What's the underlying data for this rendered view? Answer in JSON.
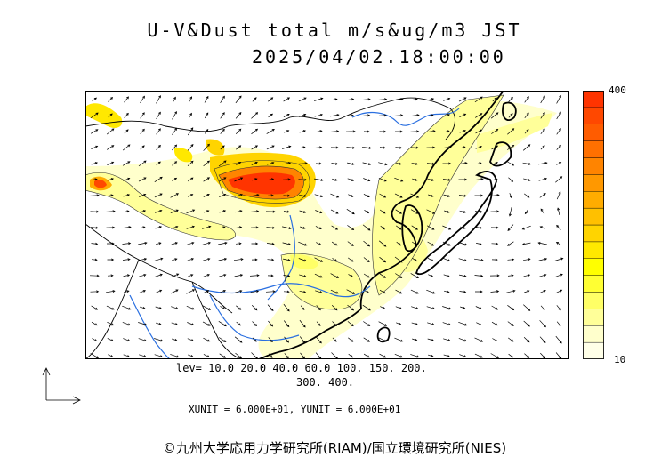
{
  "title": "U-V&Dust total m/s&ug/m3 JST",
  "datetime": "2025/04/02.18:00:00",
  "colorbar": {
    "max_label": "400",
    "min_label": "10",
    "colors": [
      "#ffffe8",
      "#ffffcc",
      "#ffff99",
      "#ffff66",
      "#ffff33",
      "#ffff00",
      "#ffe800",
      "#ffd400",
      "#ffc000",
      "#ffac00",
      "#ff9800",
      "#ff8400",
      "#ff7000",
      "#ff5c00",
      "#ff4800",
      "#ff3400"
    ]
  },
  "levels_line1": "lev= 10.0 20.0 40.0 60.0 100. 150. 200.",
  "levels_line2": "300. 400.",
  "unit_text": "XUNIT = 6.000E+01, YUNIT = 6.000E+01",
  "credit": "©九州大学応用力学研究所(RIAM)/国立環境研究所(NIES)"
}
